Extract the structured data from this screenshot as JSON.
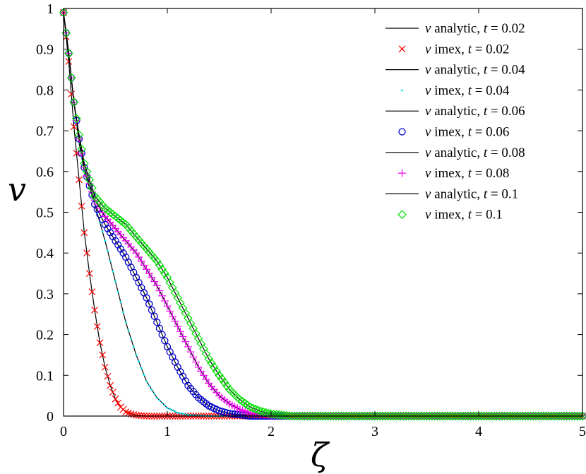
{
  "chart_data": {
    "type": "line",
    "xlabel": "ζ",
    "ylabel": "v",
    "xlim": [
      0,
      5
    ],
    "ylim": [
      0,
      1
    ],
    "x_ticks": [
      0,
      1,
      2,
      3,
      4,
      5
    ],
    "x_tick_labels": [
      "0",
      "1",
      "2",
      "3",
      "4",
      "5"
    ],
    "y_ticks": [
      0,
      0.1,
      0.2,
      0.3,
      0.4,
      0.5,
      0.6,
      0.7,
      0.8,
      0.9,
      1
    ],
    "y_tick_labels": [
      "0",
      "0.1",
      "0.2",
      "0.3",
      "0.4",
      "0.5",
      "0.6",
      "0.7",
      "0.8",
      "0.9",
      "1"
    ],
    "grid": false,
    "legend_position": "top-right",
    "series": [
      {
        "name": "v analytic, t = 0.02",
        "legend_var": "v",
        "legend_desc": " analytic, ",
        "legend_t": "t",
        "legend_val": " = 0.02",
        "kind": "line",
        "color": "#000000",
        "x": [
          0,
          0.05,
          0.1,
          0.15,
          0.2,
          0.25,
          0.3,
          0.35,
          0.4,
          0.45,
          0.5,
          0.55,
          0.6,
          0.7,
          0.8,
          1.0,
          5.0
        ],
        "y": [
          0.99,
          0.87,
          0.71,
          0.58,
          0.45,
          0.35,
          0.26,
          0.18,
          0.12,
          0.075,
          0.042,
          0.022,
          0.01,
          0.002,
          0.0,
          0.0,
          0.0
        ]
      },
      {
        "name": "v imex, t = 0.02",
        "legend_var": "v",
        "legend_desc": " imex, ",
        "legend_t": "t",
        "legend_val": " = 0.02",
        "kind": "marker",
        "marker": "x",
        "color": "#ff0000",
        "x": [
          0,
          0.05,
          0.1,
          0.15,
          0.2,
          0.25,
          0.3,
          0.35,
          0.4,
          0.45,
          0.5,
          0.55,
          0.6,
          0.65,
          0.7,
          0.75,
          0.8,
          0.85,
          0.9,
          0.95,
          1.0
        ],
        "y": [
          0.99,
          0.87,
          0.71,
          0.58,
          0.45,
          0.35,
          0.26,
          0.18,
          0.12,
          0.075,
          0.042,
          0.022,
          0.01,
          0.005,
          0.002,
          0.001,
          0.0,
          0.0,
          0.0,
          0.0,
          0.0
        ]
      },
      {
        "name": "v analytic, t = 0.04",
        "legend_var": "v",
        "legend_desc": " analytic, ",
        "legend_t": "t",
        "legend_val": " = 0.04",
        "kind": "line",
        "color": "#000000",
        "x": [
          0,
          0.05,
          0.1,
          0.15,
          0.2,
          0.3,
          0.4,
          0.5,
          0.6,
          0.7,
          0.8,
          0.9,
          1.0,
          1.1,
          1.2,
          1.4,
          5.0
        ],
        "y": [
          0.99,
          0.89,
          0.77,
          0.67,
          0.6,
          0.52,
          0.43,
          0.33,
          0.23,
          0.15,
          0.085,
          0.045,
          0.02,
          0.008,
          0.003,
          0.0,
          0.0
        ]
      },
      {
        "name": "v imex, t = 0.04",
        "legend_var": "v",
        "legend_desc": " imex, ",
        "legend_t": "t",
        "legend_val": " = 0.04",
        "kind": "marker",
        "marker": "dot",
        "color": "#00e5ee",
        "x": [
          0,
          0.05,
          0.1,
          0.15,
          0.2,
          0.3,
          0.4,
          0.5,
          0.6,
          0.7,
          0.8,
          0.9,
          1.0,
          1.1,
          1.2,
          1.4
        ],
        "y": [
          0.99,
          0.89,
          0.77,
          0.67,
          0.6,
          0.52,
          0.43,
          0.33,
          0.23,
          0.15,
          0.085,
          0.045,
          0.02,
          0.008,
          0.003,
          0.0
        ]
      },
      {
        "name": "v analytic, t = 0.06",
        "legend_var": "v",
        "legend_desc": " analytic, ",
        "legend_t": "t",
        "legend_val": " = 0.06",
        "kind": "line",
        "color": "#000000",
        "x": [
          0,
          0.05,
          0.1,
          0.15,
          0.2,
          0.3,
          0.4,
          0.5,
          0.6,
          0.7,
          0.8,
          0.9,
          1.0,
          1.1,
          1.2,
          1.3,
          1.4,
          1.5,
          1.6,
          1.8,
          5.0
        ],
        "y": [
          0.99,
          0.89,
          0.77,
          0.68,
          0.61,
          0.52,
          0.47,
          0.43,
          0.39,
          0.34,
          0.29,
          0.23,
          0.17,
          0.12,
          0.075,
          0.045,
          0.025,
          0.013,
          0.006,
          0.0,
          0.0
        ]
      },
      {
        "name": "v imex, t = 0.06",
        "legend_var": "v",
        "legend_desc": " imex, ",
        "legend_t": "t",
        "legend_val": " = 0.06",
        "kind": "marker",
        "marker": "o",
        "color": "#0000cc",
        "x": [
          0,
          0.05,
          0.1,
          0.15,
          0.2,
          0.3,
          0.4,
          0.5,
          0.6,
          0.7,
          0.8,
          0.9,
          1.0,
          1.1,
          1.2,
          1.3,
          1.4,
          1.5,
          1.6,
          1.8
        ],
        "y": [
          0.99,
          0.89,
          0.77,
          0.68,
          0.61,
          0.52,
          0.47,
          0.43,
          0.39,
          0.34,
          0.29,
          0.23,
          0.17,
          0.12,
          0.075,
          0.045,
          0.025,
          0.013,
          0.006,
          0.0
        ]
      },
      {
        "name": "v analytic, t = 0.08",
        "legend_var": "v",
        "legend_desc": " analytic, ",
        "legend_t": "t",
        "legend_val": " = 0.08",
        "kind": "line",
        "color": "#000000",
        "x": [
          0,
          0.05,
          0.1,
          0.15,
          0.2,
          0.3,
          0.4,
          0.5,
          0.6,
          0.7,
          0.8,
          0.9,
          1.0,
          1.1,
          1.2,
          1.3,
          1.4,
          1.5,
          1.6,
          1.7,
          1.8,
          2.0,
          5.0
        ],
        "y": [
          0.99,
          0.89,
          0.77,
          0.68,
          0.61,
          0.53,
          0.49,
          0.46,
          0.43,
          0.4,
          0.36,
          0.32,
          0.27,
          0.22,
          0.17,
          0.12,
          0.08,
          0.05,
          0.03,
          0.016,
          0.008,
          0.001,
          0.0
        ]
      },
      {
        "name": "v imex, t = 0.08",
        "legend_var": "v",
        "legend_desc": " imex, ",
        "legend_t": "t",
        "legend_val": " = 0.08",
        "kind": "marker",
        "marker": "+",
        "color": "#ee00ee",
        "x": [
          0,
          0.05,
          0.1,
          0.15,
          0.2,
          0.3,
          0.4,
          0.5,
          0.6,
          0.7,
          0.8,
          0.9,
          1.0,
          1.1,
          1.2,
          1.3,
          1.4,
          1.5,
          1.6,
          1.7,
          1.8,
          2.0
        ],
        "y": [
          0.99,
          0.89,
          0.77,
          0.68,
          0.61,
          0.53,
          0.49,
          0.46,
          0.43,
          0.4,
          0.36,
          0.32,
          0.27,
          0.22,
          0.17,
          0.12,
          0.08,
          0.05,
          0.03,
          0.016,
          0.008,
          0.001
        ]
      },
      {
        "name": "v analytic, t = 0.1",
        "legend_var": "v",
        "legend_desc": " analytic, ",
        "legend_t": "t",
        "legend_val": " = 0.1",
        "kind": "line",
        "color": "#000000",
        "x": [
          0,
          0.05,
          0.1,
          0.15,
          0.2,
          0.3,
          0.4,
          0.5,
          0.6,
          0.7,
          0.8,
          0.9,
          1.0,
          1.1,
          1.2,
          1.3,
          1.4,
          1.5,
          1.6,
          1.7,
          1.8,
          1.9,
          2.0,
          2.2,
          5.0
        ],
        "y": [
          0.99,
          0.89,
          0.77,
          0.69,
          0.62,
          0.54,
          0.51,
          0.49,
          0.47,
          0.44,
          0.41,
          0.38,
          0.34,
          0.29,
          0.24,
          0.19,
          0.14,
          0.1,
          0.065,
          0.04,
          0.022,
          0.012,
          0.005,
          0.0,
          0.0
        ]
      },
      {
        "name": "v imex, t = 0.1",
        "legend_var": "v",
        "legend_desc": " imex, ",
        "legend_t": "t",
        "legend_val": " = 0.1",
        "kind": "marker",
        "marker": "diamond",
        "color": "#00dd00",
        "x": [
          0,
          0.05,
          0.1,
          0.15,
          0.2,
          0.3,
          0.4,
          0.5,
          0.6,
          0.7,
          0.8,
          0.9,
          1.0,
          1.1,
          1.2,
          1.3,
          1.4,
          1.5,
          1.6,
          1.7,
          1.8,
          1.9,
          2.0,
          2.2,
          5.0
        ],
        "y": [
          0.99,
          0.89,
          0.77,
          0.69,
          0.62,
          0.54,
          0.51,
          0.49,
          0.47,
          0.44,
          0.41,
          0.38,
          0.34,
          0.29,
          0.24,
          0.19,
          0.14,
          0.1,
          0.065,
          0.04,
          0.022,
          0.012,
          0.005,
          0.0,
          0.0
        ]
      }
    ]
  }
}
